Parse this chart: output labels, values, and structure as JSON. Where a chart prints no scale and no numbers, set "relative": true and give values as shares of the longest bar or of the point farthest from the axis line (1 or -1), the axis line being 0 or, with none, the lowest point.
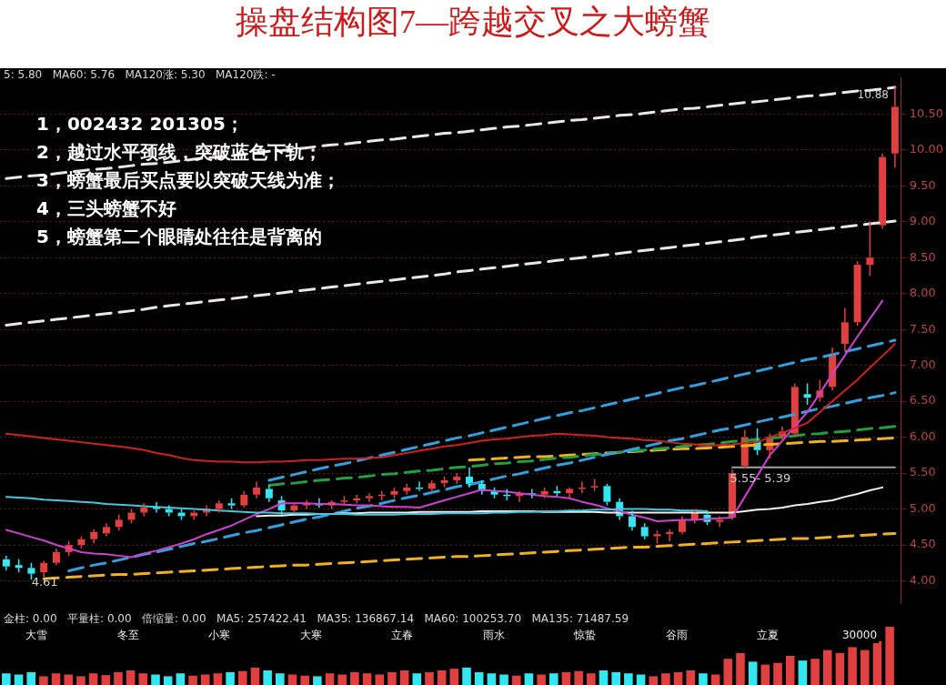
{
  "chart_data": [
    {
      "type": "candlestick",
      "title": "操盘结构图7—跨越交叉之大螃蟹",
      "subtitle": "5: 5.80   MA60: 5.76   MA120涨: 5.30   MA120跌: -",
      "categories": [
        null,
        null,
        null,
        null,
        null,
        null,
        null,
        null,
        null,
        null,
        null,
        null,
        null,
        null,
        null,
        null,
        null,
        null,
        null,
        null,
        null,
        null,
        null,
        null,
        null,
        null,
        null,
        null,
        null,
        null,
        null,
        null,
        null,
        null,
        null,
        null,
        null,
        null,
        null,
        null,
        null,
        null,
        null,
        null,
        null,
        null,
        null,
        null,
        null,
        null,
        null,
        null,
        null,
        null,
        null,
        null,
        null,
        null,
        null,
        null,
        null,
        null,
        null,
        null,
        null,
        null,
        null,
        null,
        null,
        null,
        null,
        null
      ],
      "ohlc": [
        [
          4.3,
          4.35,
          4.15,
          4.2
        ],
        [
          4.22,
          4.3,
          4.12,
          4.18
        ],
        [
          4.18,
          4.25,
          4.02,
          4.1
        ],
        [
          4.12,
          4.28,
          4.05,
          4.25
        ],
        [
          4.25,
          4.45,
          4.22,
          4.4
        ],
        [
          4.4,
          4.55,
          4.35,
          4.5
        ],
        [
          4.5,
          4.62,
          4.45,
          4.58
        ],
        [
          4.58,
          4.72,
          4.52,
          4.68
        ],
        [
          4.66,
          4.8,
          4.62,
          4.75
        ],
        [
          4.75,
          4.92,
          4.7,
          4.85
        ],
        [
          4.85,
          5.0,
          4.8,
          4.95
        ],
        [
          4.95,
          5.08,
          4.9,
          5.02
        ],
        [
          5.02,
          5.1,
          4.95,
          5.0
        ],
        [
          5.0,
          5.05,
          4.9,
          4.95
        ],
        [
          4.95,
          5.0,
          4.85,
          4.9
        ],
        [
          4.9,
          4.98,
          4.85,
          4.95
        ],
        [
          4.95,
          5.05,
          4.9,
          5.0
        ],
        [
          5.0,
          5.12,
          4.95,
          5.08
        ],
        [
          5.08,
          5.15,
          5.0,
          5.05
        ],
        [
          5.05,
          5.25,
          5.02,
          5.2
        ],
        [
          5.2,
          5.38,
          5.15,
          5.3
        ],
        [
          5.28,
          5.33,
          5.1,
          5.15
        ],
        [
          5.12,
          5.18,
          4.92,
          4.98
        ],
        [
          4.98,
          5.08,
          4.95,
          5.05
        ],
        [
          5.05,
          5.12,
          5.0,
          5.08
        ],
        [
          5.08,
          5.15,
          5.02,
          5.05
        ],
        [
          5.05,
          5.12,
          5.0,
          5.1
        ],
        [
          5.1,
          5.18,
          5.05,
          5.12
        ],
        [
          5.12,
          5.2,
          5.08,
          5.15
        ],
        [
          5.15,
          5.22,
          5.1,
          5.18
        ],
        [
          5.18,
          5.25,
          5.12,
          5.2
        ],
        [
          5.2,
          5.3,
          5.15,
          5.25
        ],
        [
          5.25,
          5.35,
          5.2,
          5.3
        ],
        [
          5.3,
          5.38,
          5.25,
          5.28
        ],
        [
          5.28,
          5.4,
          5.25,
          5.36
        ],
        [
          5.36,
          5.45,
          5.3,
          5.4
        ],
        [
          5.4,
          5.5,
          5.35,
          5.45
        ],
        [
          5.45,
          5.58,
          5.3,
          5.35
        ],
        [
          5.35,
          5.4,
          5.2,
          5.25
        ],
        [
          5.25,
          5.3,
          5.15,
          5.2
        ],
        [
          5.2,
          5.28,
          5.12,
          5.18
        ],
        [
          5.18,
          5.25,
          5.1,
          5.22
        ],
        [
          5.22,
          5.28,
          5.15,
          5.2
        ],
        [
          5.2,
          5.3,
          5.15,
          5.25
        ],
        [
          5.25,
          5.32,
          5.18,
          5.22
        ],
        [
          5.22,
          5.3,
          5.15,
          5.28
        ],
        [
          5.28,
          5.38,
          5.22,
          5.3
        ],
        [
          5.3,
          5.42,
          5.25,
          5.32
        ],
        [
          5.32,
          5.35,
          5.05,
          5.1
        ],
        [
          5.1,
          5.15,
          4.85,
          4.9
        ],
        [
          4.9,
          4.98,
          4.7,
          4.75
        ],
        [
          4.75,
          4.8,
          4.58,
          4.62
        ],
        [
          4.62,
          4.7,
          4.52,
          4.65
        ],
        [
          4.65,
          4.72,
          4.55,
          4.68
        ],
        [
          4.68,
          4.9,
          4.65,
          4.85
        ],
        [
          4.85,
          5.0,
          4.8,
          4.95
        ],
        [
          4.92,
          4.98,
          4.78,
          4.82
        ],
        [
          4.82,
          4.9,
          4.75,
          4.85
        ],
        [
          4.88,
          5.55,
          4.85,
          5.5
        ],
        [
          5.6,
          6.1,
          5.56,
          6.0
        ],
        [
          5.95,
          6.12,
          5.75,
          5.82
        ],
        [
          5.82,
          6.05,
          5.7,
          6.0
        ],
        [
          6.0,
          6.15,
          5.95,
          6.08
        ],
        [
          6.05,
          6.75,
          6.0,
          6.7
        ],
        [
          6.6,
          6.75,
          6.45,
          6.55
        ],
        [
          6.55,
          6.8,
          6.5,
          6.65
        ],
        [
          6.7,
          7.25,
          6.65,
          7.15
        ],
        [
          7.3,
          7.8,
          7.2,
          7.6
        ],
        [
          7.6,
          8.45,
          7.55,
          8.4
        ],
        [
          8.4,
          9.0,
          8.25,
          8.5
        ],
        [
          8.95,
          9.95,
          8.9,
          9.9
        ],
        [
          9.95,
          10.88,
          9.75,
          10.6
        ]
      ],
      "colors": [
        "#33e6f0",
        "#33e6f0",
        "#33e6f0",
        "#e04040",
        "#e04040",
        "#e04040",
        "#e04040",
        "#e04040",
        "#e04040",
        "#e04040",
        "#e04040",
        "#e04040",
        "#33e6f0",
        "#33e6f0",
        "#33e6f0",
        "#e04040",
        "#e04040",
        "#e04040",
        "#33e6f0",
        "#e04040",
        "#e04040",
        "#33e6f0",
        "#33e6f0",
        "#e04040",
        "#e04040",
        "#33e6f0",
        "#e04040",
        "#e04040",
        "#e04040",
        "#e04040",
        "#e04040",
        "#e04040",
        "#e04040",
        "#33e6f0",
        "#e04040",
        "#e04040",
        "#e04040",
        "#33e6f0",
        "#33e6f0",
        "#33e6f0",
        "#33e6f0",
        "#e04040",
        "#33e6f0",
        "#e04040",
        "#33e6f0",
        "#e04040",
        "#e04040",
        "#e04040",
        "#33e6f0",
        "#33e6f0",
        "#33e6f0",
        "#33e6f0",
        "#e04040",
        "#e04040",
        "#e04040",
        "#e04040",
        "#33e6f0",
        "#e04040",
        "#e04040",
        "#e04040",
        "#33e6f0",
        "#e04040",
        "#e04040",
        "#e04040",
        "#33e6f0",
        "#e04040",
        "#e04040",
        "#e04040",
        "#e04040",
        "#e04040",
        "#e04040",
        "#e04040"
      ],
      "ylim": [
        3.7,
        11.0
      ],
      "yticks": [
        {
          "value": 4,
          "label": "4.00"
        },
        {
          "value": 4.5,
          "label": "4.50"
        },
        {
          "value": 5,
          "label": "5.00"
        },
        {
          "value": 5.5,
          "label": "5.50"
        },
        {
          "value": 6,
          "label": "6.00"
        },
        {
          "value": 6.5,
          "label": "6.50"
        },
        {
          "value": 7,
          "label": "7.00"
        },
        {
          "value": 7.5,
          "label": "7.50"
        },
        {
          "value": 8,
          "label": "8.00"
        },
        {
          "value": 8.5,
          "label": "8.50"
        },
        {
          "value": 9,
          "label": "9.00"
        },
        {
          "value": 9.5,
          "label": "9.50"
        },
        {
          "value": 10,
          "label": "10.00"
        },
        {
          "value": 10.5,
          "label": "10.50"
        }
      ],
      "tick_labels": "y",
      "grid": "y",
      "series": [
        {
          "type": "line",
          "color": "#d02020",
          "values": [
            6.05,
            6.03,
            6.01,
            5.99,
            5.97,
            5.95,
            5.93,
            5.91,
            5.89,
            5.87,
            5.85,
            5.82,
            5.78,
            5.75,
            5.71,
            5.68,
            5.67,
            5.66,
            5.66,
            5.65,
            5.65,
            5.66,
            5.66,
            5.67,
            5.68,
            5.68,
            5.69,
            5.7,
            5.7,
            5.71,
            5.72,
            5.75,
            5.78,
            5.81,
            5.84,
            5.87,
            5.89,
            5.92,
            5.95,
            5.97,
            5.98,
            6.0,
            6.02,
            6.03,
            6.05,
            6.04,
            6.03,
            6.02,
            6.0,
            5.99,
            5.98,
            5.96,
            5.95,
            5.93,
            5.91,
            5.9,
            5.88,
            5.89,
            5.9,
            5.92,
            5.93,
            6.0,
            6.06,
            6.13,
            6.2,
            6.35,
            6.5,
            6.65,
            6.8,
            6.97,
            7.13,
            7.3
          ]
        },
        {
          "type": "line",
          "color": "#40c8e0",
          "values": [
            5.17,
            5.16,
            5.15,
            5.13,
            5.12,
            5.11,
            5.1,
            5.09,
            5.07,
            5.06,
            5.05,
            5.04,
            5.03,
            5.02,
            5.01,
            5.0,
            4.99,
            4.98,
            4.97,
            4.96,
            4.95,
            4.95,
            4.94,
            4.94,
            4.94,
            4.93,
            4.93,
            4.93,
            4.92,
            4.92,
            4.92,
            4.92,
            4.93,
            4.93,
            4.93,
            4.94,
            4.94,
            4.94,
            4.94,
            4.95,
            4.95,
            4.96,
            4.96,
            4.97,
            4.97,
            4.98,
            4.98,
            4.99,
            4.99,
            5.0,
            5.0,
            5.0,
            4.99,
            4.99,
            4.98,
            4.98,
            4.97,
            null,
            null,
            null,
            null,
            null,
            null,
            null,
            null,
            null,
            null,
            null,
            null,
            null,
            null,
            null
          ]
        },
        {
          "type": "line",
          "color": "#d040d0",
          "values": [
            4.71,
            4.66,
            4.61,
            4.56,
            4.5,
            4.45,
            4.4,
            4.38,
            4.37,
            4.35,
            4.33,
            4.38,
            4.42,
            4.47,
            4.52,
            4.58,
            4.65,
            4.71,
            4.77,
            4.85,
            4.93,
            5.0,
            5.08,
            5.08,
            5.08,
            5.07,
            5.07,
            5.06,
            5.05,
            5.05,
            5.04,
            5.03,
            5.03,
            5.02,
            5.07,
            5.12,
            5.17,
            5.22,
            5.27,
            5.25,
            5.24,
            5.22,
            5.2,
            5.18,
            5.17,
            5.15,
            5.1,
            5.06,
            5.01,
            4.97,
            4.92,
            4.88,
            4.83,
            4.84,
            4.85,
            4.85,
            4.86,
            4.87,
            4.88,
            5.17,
            5.46,
            5.75,
            5.95,
            6.15,
            6.35,
            6.61,
            6.88,
            7.14,
            7.4,
            7.65,
            7.9,
            null
          ]
        },
        {
          "type": "line",
          "color": "#f0f0f0",
          "values": [
            null,
            null,
            null,
            null,
            null,
            null,
            null,
            null,
            null,
            null,
            null,
            null,
            null,
            null,
            null,
            null,
            null,
            null,
            null,
            null,
            4.9,
            4.91,
            4.91,
            4.92,
            4.92,
            4.93,
            4.93,
            4.94,
            4.94,
            4.95,
            4.95,
            4.95,
            4.95,
            4.96,
            4.96,
            4.96,
            4.96,
            4.96,
            4.97,
            4.97,
            4.97,
            4.97,
            4.97,
            4.96,
            4.96,
            4.96,
            4.96,
            4.96,
            4.95,
            4.95,
            4.95,
            4.95,
            4.95,
            4.95,
            4.95,
            4.95,
            4.95,
            4.95,
            4.95,
            4.97,
            4.99,
            5.0,
            5.02,
            5.05,
            5.07,
            5.1,
            5.12,
            5.17,
            5.21,
            5.26,
            5.3,
            null
          ]
        },
        {
          "type": "line",
          "color": "#e8e8e8",
          "line_style": "dashed",
          "values": [
            9.6,
            9.62,
            9.64,
            9.65,
            9.67,
            9.69,
            9.71,
            9.73,
            9.74,
            9.76,
            9.78,
            9.8,
            9.81,
            9.83,
            9.85,
            9.87,
            9.89,
            9.9,
            9.92,
            9.94,
            9.96,
            9.98,
            9.99,
            10.01,
            10.03,
            10.05,
            10.07,
            10.08,
            10.1,
            10.12,
            10.14,
            10.15,
            10.17,
            10.19,
            10.21,
            10.23,
            10.24,
            10.26,
            10.28,
            10.3,
            10.32,
            10.33,
            10.35,
            10.37,
            10.39,
            10.41,
            10.42,
            10.44,
            10.46,
            10.48,
            10.49,
            10.51,
            10.53,
            10.55,
            10.57,
            10.58,
            10.6,
            10.62,
            10.64,
            10.66,
            10.67,
            10.69,
            10.71,
            10.73,
            10.75,
            10.76,
            10.78,
            10.8,
            10.82,
            10.83,
            10.85,
            10.87
          ]
        },
        {
          "type": "line",
          "color": "#e8e8e8",
          "line_style": "dashed",
          "values": [
            7.56,
            7.58,
            7.6,
            7.62,
            7.64,
            7.66,
            7.68,
            7.7,
            7.72,
            7.74,
            7.76,
            7.78,
            7.81,
            7.83,
            7.85,
            7.87,
            7.89,
            7.91,
            7.93,
            7.95,
            7.97,
            7.99,
            8.01,
            8.03,
            8.05,
            8.07,
            8.09,
            8.11,
            8.13,
            8.15,
            8.17,
            8.19,
            8.21,
            8.23,
            8.25,
            8.27,
            8.3,
            8.32,
            8.34,
            8.36,
            8.38,
            8.4,
            8.42,
            8.44,
            8.46,
            8.48,
            8.5,
            8.52,
            8.54,
            8.56,
            8.58,
            8.6,
            8.62,
            8.64,
            8.66,
            8.68,
            8.7,
            8.72,
            8.74,
            8.76,
            8.79,
            8.81,
            8.83,
            8.85,
            8.87,
            8.89,
            8.91,
            8.93,
            8.95,
            8.97,
            8.99,
            9.01
          ]
        },
        {
          "type": "line",
          "color": "#30a0e0",
          "line_style": "dashed",
          "values": [
            null,
            null,
            null,
            null,
            null,
            null,
            null,
            null,
            null,
            null,
            null,
            null,
            null,
            null,
            null,
            null,
            null,
            null,
            null,
            null,
            null,
            5.4,
            5.44,
            5.48,
            5.52,
            5.56,
            5.6,
            5.63,
            5.67,
            5.71,
            5.75,
            5.79,
            5.83,
            5.87,
            5.91,
            5.95,
            5.99,
            6.02,
            6.06,
            6.1,
            6.14,
            6.18,
            6.22,
            6.26,
            6.3,
            6.34,
            6.37,
            6.41,
            6.45,
            6.49,
            6.53,
            6.57,
            6.61,
            6.65,
            6.69,
            6.72,
            6.76,
            6.8,
            6.84,
            6.88,
            6.92,
            6.96,
            7.0,
            7.04,
            7.08,
            7.11,
            7.15,
            7.19,
            7.23,
            7.27,
            7.31,
            7.35
          ]
        },
        {
          "type": "line",
          "color": "#30a0e0",
          "line_style": "dashed",
          "values": [
            null,
            null,
            null,
            null,
            null,
            4.14,
            4.18,
            4.22,
            4.25,
            4.29,
            4.33,
            4.37,
            4.4,
            4.44,
            4.48,
            4.52,
            4.55,
            4.59,
            4.63,
            4.67,
            4.7,
            4.74,
            4.78,
            4.82,
            4.86,
            4.89,
            4.93,
            4.97,
            5.01,
            5.04,
            5.08,
            5.12,
            5.16,
            5.19,
            5.23,
            5.27,
            5.31,
            5.34,
            5.38,
            5.42,
            5.46,
            5.49,
            5.53,
            5.57,
            5.61,
            5.64,
            5.68,
            5.72,
            5.76,
            5.79,
            5.83,
            5.87,
            5.91,
            5.95,
            5.98,
            6.02,
            6.06,
            6.1,
            6.13,
            6.17,
            6.21,
            6.25,
            6.28,
            6.32,
            6.36,
            6.4,
            6.43,
            6.47,
            6.51,
            6.55,
            6.58,
            6.62
          ]
        },
        {
          "type": "line",
          "color": "#20a040",
          "line_style": "dashed",
          "values": [
            null,
            null,
            null,
            null,
            null,
            null,
            null,
            null,
            null,
            null,
            null,
            null,
            null,
            null,
            null,
            null,
            null,
            null,
            null,
            null,
            null,
            5.33,
            5.35,
            5.36,
            5.38,
            5.4,
            5.41,
            5.43,
            5.44,
            5.46,
            5.48,
            5.49,
            5.51,
            5.53,
            5.54,
            5.56,
            5.58,
            5.59,
            5.61,
            5.63,
            5.64,
            5.66,
            5.67,
            5.69,
            5.71,
            5.72,
            5.74,
            5.76,
            5.77,
            5.79,
            5.81,
            5.82,
            5.84,
            5.85,
            5.87,
            5.89,
            5.9,
            5.92,
            5.94,
            5.95,
            5.97,
            5.99,
            6.0,
            6.02,
            6.04,
            6.05,
            6.07,
            6.08,
            6.1,
            6.12,
            6.13,
            6.15
          ]
        },
        {
          "type": "line",
          "color": "#f0b020",
          "line_style": "dashed",
          "values": [
            null,
            null,
            null,
            null,
            null,
            null,
            null,
            null,
            null,
            null,
            null,
            null,
            null,
            null,
            null,
            null,
            null,
            null,
            null,
            null,
            null,
            null,
            null,
            null,
            null,
            null,
            null,
            null,
            null,
            null,
            null,
            null,
            null,
            null,
            null,
            null,
            null,
            5.68,
            5.69,
            5.7,
            5.71,
            5.72,
            5.73,
            5.73,
            5.74,
            5.75,
            5.76,
            5.77,
            5.78,
            5.79,
            5.8,
            5.81,
            5.82,
            5.83,
            5.84,
            5.84,
            5.85,
            5.86,
            5.87,
            5.88,
            5.89,
            5.9,
            5.91,
            5.92,
            5.93,
            5.94,
            5.94,
            5.95,
            5.96,
            5.97,
            5.98,
            5.99
          ]
        },
        {
          "type": "line",
          "color": "#f0b020",
          "line_style": "dashed",
          "values": [
            null,
            null,
            null,
            4.03,
            4.04,
            4.05,
            4.06,
            4.07,
            4.08,
            4.09,
            4.09,
            4.1,
            4.11,
            4.12,
            4.13,
            4.14,
            4.15,
            4.16,
            4.17,
            4.18,
            4.19,
            4.2,
            4.21,
            4.22,
            4.22,
            4.23,
            4.24,
            4.25,
            4.26,
            4.27,
            4.28,
            4.29,
            4.3,
            4.31,
            4.32,
            4.33,
            4.34,
            4.34,
            4.35,
            4.36,
            4.37,
            4.38,
            4.39,
            4.4,
            4.41,
            4.42,
            4.43,
            4.44,
            4.45,
            4.46,
            4.47,
            4.47,
            4.48,
            4.49,
            4.5,
            4.51,
            4.52,
            4.53,
            4.54,
            4.55,
            4.56,
            4.57,
            4.58,
            4.59,
            4.59,
            4.6,
            4.61,
            4.62,
            4.63,
            4.64,
            4.65,
            4.66
          ]
        },
        {
          "type": "line",
          "color": "#a0a0a0",
          "values": [
            null,
            null,
            null,
            null,
            null,
            null,
            null,
            null,
            null,
            null,
            null,
            null,
            null,
            null,
            null,
            null,
            null,
            null,
            null,
            null,
            null,
            null,
            null,
            null,
            null,
            null,
            null,
            null,
            null,
            null,
            null,
            null,
            null,
            null,
            null,
            null,
            null,
            null,
            null,
            null,
            null,
            null,
            null,
            null,
            null,
            null,
            null,
            null,
            null,
            null,
            null,
            null,
            null,
            null,
            null,
            null,
            null,
            null,
            5.58,
            5.58,
            5.58,
            5.58,
            5.58,
            5.58,
            5.58,
            5.58,
            5.58,
            5.58,
            5.58,
            5.58,
            5.58,
            5.58
          ]
        }
      ],
      "annotations": [
        "1，002432 201305；",
        "2，越过水平颈线，突破蓝色下轨；",
        "3，螃蟹最后买点要以突破天线为准；",
        "4，三头螃蟹不好",
        "5，螃蟹第二个眼睛处往往是背离的",
        "4.61",
        "5.55- 5.39",
        {
          "text": "10.88",
          "y": 10.88
        }
      ]
    },
    {
      "type": "bar",
      "subtitle": "金柱: 0.00   平量柱: 0.00   倍缩量: 0.00   MA5: 257422.41   MA35: 136867.14   MA60: 100253.70   MA135: 71487.59",
      "relative": true,
      "tick_labels": false,
      "categories": [
        null,
        null,
        null,
        null,
        null,
        null,
        null,
        null,
        null,
        null,
        null,
        null,
        null,
        null,
        null,
        null,
        null,
        null,
        null,
        null,
        null,
        null,
        null,
        null,
        null,
        null,
        null,
        null,
        null,
        null,
        null,
        null,
        null,
        null,
        null,
        null,
        null,
        null,
        null,
        null,
        null,
        null,
        null,
        null,
        null,
        null,
        null,
        null,
        null,
        null,
        null,
        null,
        null,
        null,
        null,
        null,
        null,
        null,
        null,
        null,
        null,
        null,
        null,
        null,
        null,
        null,
        null,
        null,
        null,
        null,
        null,
        null
      ],
      "values": [
        0.2,
        0.18,
        0.22,
        0.15,
        0.2,
        0.18,
        0.15,
        0.2,
        0.17,
        0.22,
        0.25,
        0.2,
        0.18,
        0.15,
        0.2,
        0.16,
        0.18,
        0.2,
        0.22,
        0.24,
        0.3,
        0.25,
        0.2,
        0.18,
        0.16,
        0.15,
        0.2,
        0.18,
        0.22,
        0.2,
        0.18,
        0.22,
        0.25,
        0.2,
        0.22,
        0.25,
        0.28,
        0.3,
        0.22,
        0.2,
        0.18,
        0.16,
        0.2,
        0.18,
        0.2,
        0.22,
        0.24,
        0.2,
        0.25,
        0.22,
        0.2,
        0.18,
        0.15,
        0.2,
        0.22,
        0.25,
        0.2,
        0.18,
        0.45,
        0.55,
        0.4,
        0.35,
        0.38,
        0.5,
        0.42,
        0.45,
        0.6,
        0.55,
        0.65,
        0.6,
        0.75,
        1
      ],
      "colors": [
        "#33e6f0",
        "#33e6f0",
        "#33e6f0",
        "#e04040",
        "#e04040",
        "#e04040",
        "#e04040",
        "#e04040",
        "#e04040",
        "#e04040",
        "#e04040",
        "#e04040",
        "#33e6f0",
        "#33e6f0",
        "#33e6f0",
        "#e04040",
        "#e04040",
        "#e04040",
        "#33e6f0",
        "#e04040",
        "#e04040",
        "#33e6f0",
        "#33e6f0",
        "#e04040",
        "#e04040",
        "#33e6f0",
        "#e04040",
        "#e04040",
        "#e04040",
        "#e04040",
        "#e04040",
        "#e04040",
        "#e04040",
        "#33e6f0",
        "#e04040",
        "#e04040",
        "#e04040",
        "#33e6f0",
        "#33e6f0",
        "#33e6f0",
        "#33e6f0",
        "#e04040",
        "#33e6f0",
        "#e04040",
        "#33e6f0",
        "#e04040",
        "#e04040",
        "#e04040",
        "#33e6f0",
        "#33e6f0",
        "#33e6f0",
        "#33e6f0",
        "#e04040",
        "#e04040",
        "#e04040",
        "#e04040",
        "#33e6f0",
        "#e04040",
        "#e04040",
        "#e04040",
        "#33e6f0",
        "#e04040",
        "#e04040",
        "#e04040",
        "#33e6f0",
        "#e04040",
        "#e04040",
        "#e04040",
        "#e04040",
        "#e04040",
        "#e04040",
        "#e04040"
      ],
      "annotations": [
        "大雪",
        "冬至",
        "小寒",
        "大寒",
        "立春",
        "雨水",
        "惊蛰",
        "谷雨",
        "立夏",
        "30000"
      ]
    }
  ]
}
